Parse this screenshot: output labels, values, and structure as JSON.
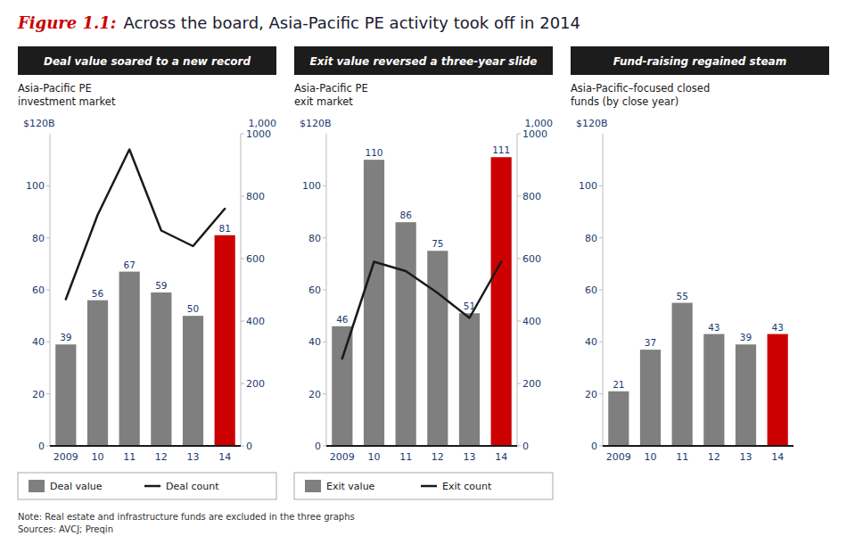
{
  "title": "Figure 1.1:",
  "subtitle": "Across the board, Asia-Pacific PE activity took off in 2014",
  "notes": [
    "Note: Real estate and infrastructure funds are excluded in the three graphs",
    "Sources: AVCJ; Preqin"
  ],
  "chart_data": [
    {
      "type": "bar",
      "title": "Deal value soared to a new record",
      "subtitle": [
        "Asia-Pacific PE",
        "investment market"
      ],
      "ylabel": "$120B",
      "y2label": "1,000",
      "categories": [
        "2009",
        "10",
        "11",
        "12",
        "13",
        "14"
      ],
      "series": [
        {
          "name": "Deal value",
          "type": "bar",
          "color": "#7f7f7f",
          "colors": [
            "#7f7f7f",
            "#7f7f7f",
            "#7f7f7f",
            "#7f7f7f",
            "#7f7f7f",
            "#cc0000"
          ],
          "values": [
            39,
            56,
            67,
            59,
            50,
            81
          ]
        },
        {
          "name": "Deal count",
          "type": "line",
          "axis": "y2",
          "color": "#1a1a1a",
          "values": [
            470,
            740,
            950,
            690,
            640,
            760
          ]
        }
      ],
      "ylim": [
        0,
        120
      ],
      "yticks": [
        0,
        20,
        40,
        60,
        80,
        100
      ],
      "y2lim": [
        0,
        1000
      ],
      "y2ticks": [
        0,
        200,
        400,
        600,
        800,
        1000
      ],
      "data_labels": true,
      "grid": false,
      "legend": "bottom"
    },
    {
      "type": "bar",
      "title": "Exit value reversed a three-year slide",
      "subtitle": [
        "Asia-Pacific PE",
        "exit market"
      ],
      "ylabel": "$120B",
      "y2label": "1,000",
      "categories": [
        "2009",
        "10",
        "11",
        "12",
        "13",
        "14"
      ],
      "series": [
        {
          "name": "Exit value",
          "type": "bar",
          "color": "#7f7f7f",
          "colors": [
            "#7f7f7f",
            "#7f7f7f",
            "#7f7f7f",
            "#7f7f7f",
            "#7f7f7f",
            "#cc0000"
          ],
          "values": [
            46,
            110,
            86,
            75,
            51,
            111
          ]
        },
        {
          "name": "Exit count",
          "type": "line",
          "axis": "y2",
          "color": "#1a1a1a",
          "values": [
            280,
            590,
            560,
            490,
            410,
            590
          ]
        }
      ],
      "ylim": [
        0,
        120
      ],
      "yticks": [
        0,
        20,
        40,
        60,
        80,
        100
      ],
      "y2lim": [
        0,
        1000
      ],
      "y2ticks": [
        0,
        200,
        400,
        600,
        800,
        1000
      ],
      "data_labels": true,
      "grid": false,
      "legend": "bottom"
    },
    {
      "type": "bar",
      "title": "Fund-raising regained steam",
      "subtitle": [
        "Asia-Pacific–focused closed",
        "funds (by close year)"
      ],
      "ylabel": "$120B",
      "categories": [
        "2009",
        "10",
        "11",
        "12",
        "13",
        "14"
      ],
      "values": [
        21,
        37,
        55,
        43,
        39,
        43
      ],
      "colors": [
        "#7f7f7f",
        "#7f7f7f",
        "#7f7f7f",
        "#7f7f7f",
        "#7f7f7f",
        "#cc0000"
      ],
      "ylim": [
        0,
        120
      ],
      "yticks": [
        0,
        20,
        40,
        60,
        80,
        100
      ],
      "data_labels": true,
      "grid": false
    }
  ]
}
